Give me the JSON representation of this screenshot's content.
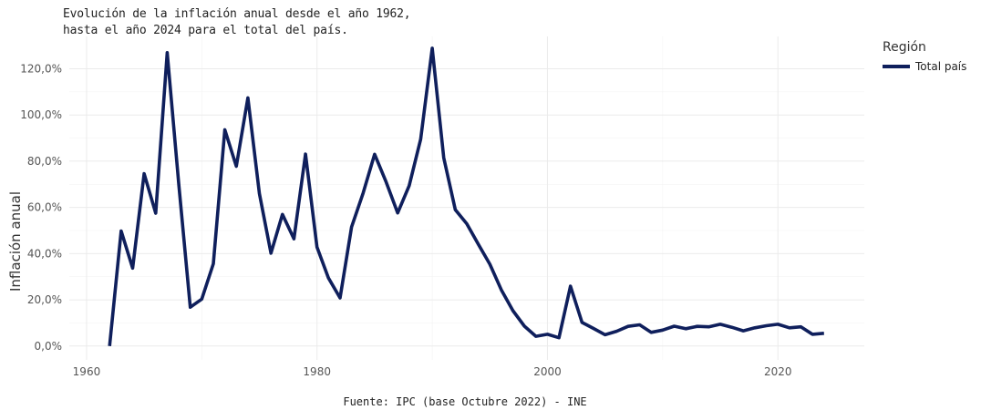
{
  "title_lines": [
    "Evolución de la inflación anual desde el año 1962,",
    "hasta el año 2024 para el total del país."
  ],
  "caption": "Fuente: IPC (base Octubre 2022) - INE",
  "legend": {
    "title": "Región",
    "items": [
      "Total país"
    ]
  },
  "colors": {
    "line": "#0f1f5c",
    "grid": "#ebebeb"
  },
  "chart_data": {
    "type": "line",
    "title": "Evolución de la inflación anual desde el año 1962, hasta el año 2024 para el total del país.",
    "xlabel": "",
    "ylabel": "Inflación anual",
    "xlim": [
      1958.5,
      2027.5
    ],
    "ylim": [
      -6,
      134
    ],
    "x_ticks": [
      1960,
      1980,
      2000,
      2020
    ],
    "x_tick_labels": [
      "1960",
      "1980",
      "2000",
      "2020"
    ],
    "y_ticks": [
      0,
      20,
      40,
      60,
      80,
      100,
      120
    ],
    "y_tick_labels": [
      "0,0%",
      "20,0%",
      "40,0%",
      "60,0%",
      "80,0%",
      "100,0%",
      "120,0%"
    ],
    "grid": true,
    "legend_position": "top-right",
    "series": [
      {
        "name": "Total país",
        "x": [
          1962,
          1963,
          1964,
          1965,
          1966,
          1967,
          1968,
          1969,
          1970,
          1971,
          1972,
          1973,
          1974,
          1975,
          1976,
          1977,
          1978,
          1979,
          1980,
          1981,
          1982,
          1983,
          1984,
          1985,
          1986,
          1987,
          1988,
          1989,
          1990,
          1991,
          1992,
          1993,
          1994,
          1995,
          1996,
          1997,
          1998,
          1999,
          2000,
          2001,
          2002,
          2003,
          2004,
          2005,
          2006,
          2007,
          2008,
          2009,
          2010,
          2011,
          2012,
          2013,
          2014,
          2015,
          2016,
          2017,
          2018,
          2019,
          2020,
          2021,
          2022,
          2023,
          2024
        ],
        "y": [
          0.0,
          49.8,
          33.7,
          74.6,
          57.5,
          127.0,
          70.0,
          16.8,
          20.3,
          35.6,
          93.6,
          77.8,
          107.4,
          66.0,
          40.2,
          57.0,
          46.4,
          83.1,
          42.8,
          29.4,
          20.8,
          51.5,
          66.2,
          83.0,
          71.0,
          57.6,
          69.4,
          89.5,
          128.9,
          81.5,
          59.0,
          52.9,
          44.1,
          35.4,
          24.3,
          15.3,
          8.6,
          4.2,
          5.1,
          3.6,
          25.9,
          10.2,
          7.6,
          4.9,
          6.4,
          8.5,
          9.2,
          5.9,
          6.9,
          8.6,
          7.5,
          8.5,
          8.3,
          9.4,
          8.1,
          6.6,
          7.9,
          8.8,
          9.4,
          7.9,
          8.3,
          5.1,
          5.5
        ]
      }
    ]
  }
}
